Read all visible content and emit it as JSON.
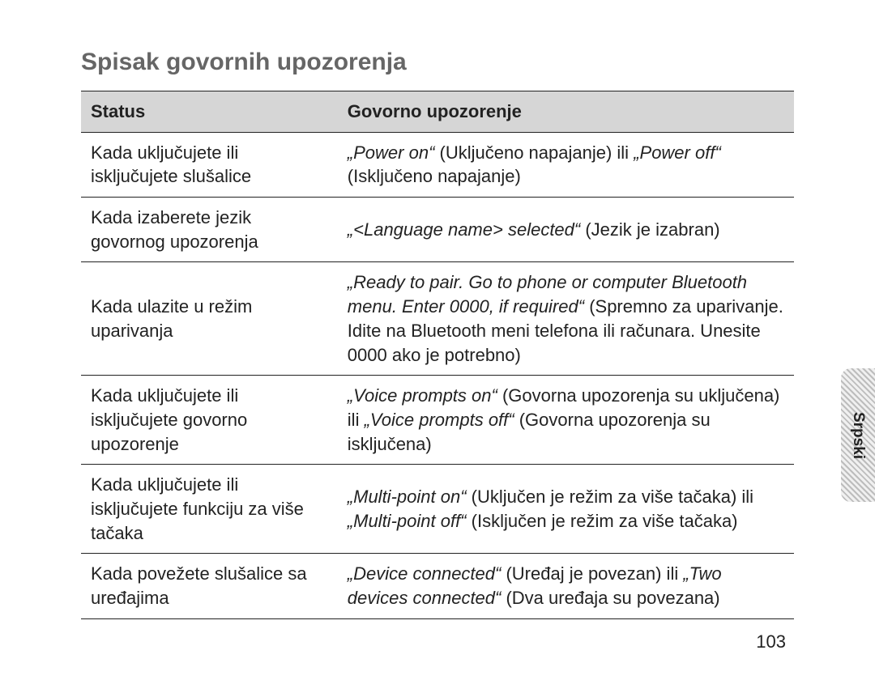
{
  "heading": "Spisak govornih upozorenja",
  "columns": {
    "status": "Status",
    "prompt": "Govorno upozorenje"
  },
  "rows": [
    {
      "status": "Kada uključujete ili isključujete slušalice",
      "prompt_html": "<span class=\"italic\">„Power on“</span> (Uključeno napajanje) ili <span class=\"italic\">„Power off“</span> (Isključeno napajanje)"
    },
    {
      "status": "Kada izaberete jezik govornog upozorenja",
      "prompt_html": "<span class=\"italic\">„&lt;Language name&gt; selected“</span> (Jezik je izabran)"
    },
    {
      "status": "Kada ulazite u režim uparivanja",
      "prompt_html": "<span class=\"italic\">„Ready to pair. Go to phone or computer Bluetooth menu. Enter 0000, if required“</span> (Spremno za uparivanje. Idite na Bluetooth meni telefona ili računara. Unesite 0000 ako je potrebno)"
    },
    {
      "status": "Kada uključujete ili isključujete govorno upozorenje",
      "prompt_html": "<span class=\"italic\">„Voice prompts on“</span> (Govorna upozorenja su uključena) ili <span class=\"italic\">„Voice prompts off“</span> (Govorna upozorenja su isključena)"
    },
    {
      "status": "Kada uključujete ili isključujete funkciju za više tačaka",
      "prompt_html": "<span class=\"italic\">„Multi-point on“</span> (Uključen je režim za više tačaka) ili <span class=\"italic\">„Multi-point off“</span> (Isključen je režim za više tačaka)"
    },
    {
      "status": "Kada povežete slušalice sa uređajima",
      "prompt_html": "<span class=\"italic\">„Device connected“</span> (Uređaj je povezan) ili <span class=\"italic\">„Two devices connected“</span> (Dva uređaja su povezana)"
    }
  ],
  "page_number": "103",
  "side_tab": "Srpski",
  "colors": {
    "heading": "#666666",
    "header_bg": "#d6d6d6",
    "border": "#222222",
    "text": "#222222",
    "background": "#ffffff"
  },
  "typography": {
    "heading_fontsize": 30,
    "body_fontsize": 22,
    "side_tab_fontsize": 19
  }
}
